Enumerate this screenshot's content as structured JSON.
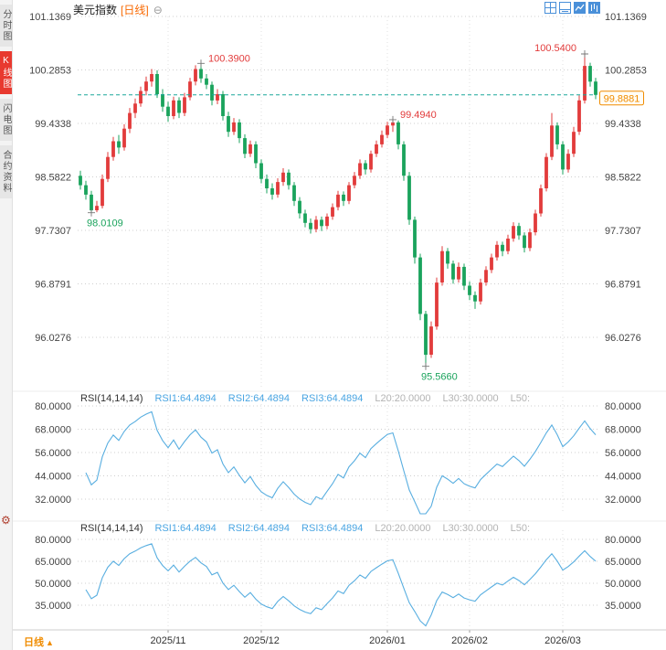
{
  "app": {
    "sidebar": {
      "tabs": [
        {
          "label": "分时图",
          "active": false
        },
        {
          "label": "K线图",
          "active": true
        },
        {
          "label": "闪电图",
          "active": false
        },
        {
          "label": "合约资料",
          "active": false
        }
      ],
      "settings_glyph": "⚙"
    },
    "header": {
      "title": "美元指数",
      "period_tag": "[日线]",
      "collapse_glyph": "⊖",
      "toolbar_icons": [
        "grid-layout-icon",
        "split-layout-icon",
        "line-chart-panel-icon",
        "candle-chart-panel-icon"
      ]
    },
    "footer": {
      "period_label": "日线",
      "period_arrow": "▲"
    }
  },
  "colors": {
    "up": "#e23b3b",
    "down": "#1aa35c",
    "rsi_line": "#58aee0",
    "price_line": "#1ba79b",
    "badge": "#f08c00",
    "grid": "#cfcfcf",
    "axis_text": "#444444",
    "gray_text": "#b3b3b3",
    "blue_text": "#4aa5e2",
    "tab_active_bg": "#e8392f"
  },
  "chart_data": {
    "type": "candlestick+rsi",
    "title": "美元指数 日线",
    "price_axis": [
      "101.1369",
      "100.2853",
      "99.4338",
      "98.5822",
      "97.7307",
      "96.8791",
      "96.0276"
    ],
    "price_axis_values": [
      101.1369,
      100.2853,
      99.4338,
      98.5822,
      97.7307,
      96.8791,
      96.0276
    ],
    "price_range_hint": [
      95.2,
      101.25
    ],
    "x_labels": [
      {
        "label": "2025/11",
        "idx": 16
      },
      {
        "label": "2025/12",
        "idx": 33
      },
      {
        "label": "2026/01",
        "idx": 56
      },
      {
        "label": "2026/02",
        "idx": 71
      },
      {
        "label": "2026/03",
        "idx": 88
      }
    ],
    "current_price": "99.8881",
    "annotations": [
      {
        "text": "98.0109",
        "idx": 2,
        "price": 98.0109,
        "type": "low",
        "color": "#1aa35c"
      },
      {
        "text": "100.3900",
        "idx": 22,
        "price": 100.39,
        "type": "high",
        "color": "#e23b3b"
      },
      {
        "text": "99.4940",
        "idx": 57,
        "price": 99.494,
        "type": "high",
        "color": "#e23b3b"
      },
      {
        "text": "95.5660",
        "idx": 63,
        "price": 95.566,
        "type": "low",
        "color": "#1aa35c"
      },
      {
        "text": "100.5400",
        "idx": 92,
        "price": 100.54,
        "type": "high",
        "color": "#e23b3b",
        "label_side": "left"
      }
    ],
    "candles": [
      [
        98.6,
        98.68,
        98.38,
        98.45
      ],
      [
        98.45,
        98.52,
        98.22,
        98.3
      ],
      [
        98.3,
        98.36,
        98.0109,
        98.05
      ],
      [
        98.05,
        98.2,
        98.02,
        98.12
      ],
      [
        98.12,
        98.62,
        98.08,
        98.55
      ],
      [
        98.55,
        98.98,
        98.5,
        98.9
      ],
      [
        98.9,
        99.22,
        98.84,
        99.15
      ],
      [
        99.15,
        99.25,
        98.95,
        99.05
      ],
      [
        99.05,
        99.42,
        99.0,
        99.35
      ],
      [
        99.35,
        99.68,
        99.28,
        99.6
      ],
      [
        99.6,
        99.83,
        99.52,
        99.75
      ],
      [
        99.75,
        100.02,
        99.7,
        99.95
      ],
      [
        99.95,
        100.18,
        99.88,
        100.1
      ],
      [
        100.1,
        100.3,
        100.02,
        100.22
      ],
      [
        100.22,
        100.28,
        99.84,
        99.9
      ],
      [
        99.9,
        99.98,
        99.62,
        99.7
      ],
      [
        99.7,
        99.78,
        99.46,
        99.55
      ],
      [
        99.55,
        99.86,
        99.5,
        99.8
      ],
      [
        99.8,
        99.85,
        99.52,
        99.6
      ],
      [
        99.6,
        99.92,
        99.55,
        99.85
      ],
      [
        99.85,
        100.16,
        99.8,
        100.1
      ],
      [
        100.1,
        100.36,
        100.04,
        100.3
      ],
      [
        100.3,
        100.39,
        100.08,
        100.15
      ],
      [
        100.15,
        100.22,
        99.98,
        100.05
      ],
      [
        100.05,
        100.1,
        99.72,
        99.8
      ],
      [
        99.8,
        99.98,
        99.74,
        99.9
      ],
      [
        99.9,
        99.95,
        99.48,
        99.55
      ],
      [
        99.55,
        99.62,
        99.22,
        99.3
      ],
      [
        99.3,
        99.52,
        99.25,
        99.45
      ],
      [
        99.45,
        99.5,
        99.12,
        99.2
      ],
      [
        99.2,
        99.26,
        98.88,
        98.95
      ],
      [
        98.95,
        99.16,
        98.9,
        99.1
      ],
      [
        99.1,
        99.15,
        98.72,
        98.8
      ],
      [
        98.8,
        98.86,
        98.48,
        98.55
      ],
      [
        98.55,
        98.62,
        98.32,
        98.4
      ],
      [
        98.4,
        98.48,
        98.22,
        98.3
      ],
      [
        98.3,
        98.56,
        98.25,
        98.5
      ],
      [
        98.5,
        98.72,
        98.44,
        98.65
      ],
      [
        98.65,
        98.7,
        98.38,
        98.45
      ],
      [
        98.45,
        98.5,
        98.12,
        98.2
      ],
      [
        98.2,
        98.26,
        97.92,
        98.0
      ],
      [
        98.0,
        98.06,
        97.78,
        97.85
      ],
      [
        97.85,
        97.92,
        97.68,
        97.75
      ],
      [
        97.75,
        97.96,
        97.7,
        97.9
      ],
      [
        97.9,
        97.95,
        97.72,
        97.8
      ],
      [
        97.8,
        98.0,
        97.75,
        97.95
      ],
      [
        97.95,
        98.16,
        97.9,
        98.1
      ],
      [
        98.1,
        98.36,
        98.05,
        98.3
      ],
      [
        98.3,
        98.35,
        98.12,
        98.2
      ],
      [
        98.2,
        98.5,
        98.15,
        98.45
      ],
      [
        98.45,
        98.66,
        98.4,
        98.6
      ],
      [
        98.6,
        98.86,
        98.55,
        98.8
      ],
      [
        98.8,
        98.85,
        98.62,
        98.7
      ],
      [
        98.7,
        99.0,
        98.65,
        98.95
      ],
      [
        98.95,
        99.16,
        98.9,
        99.1
      ],
      [
        99.1,
        99.32,
        99.05,
        99.25
      ],
      [
        99.25,
        99.46,
        99.2,
        99.4
      ],
      [
        99.4,
        99.494,
        99.3,
        99.45
      ],
      [
        99.45,
        99.48,
        99.02,
        99.1
      ],
      [
        99.1,
        99.15,
        98.52,
        98.6
      ],
      [
        98.6,
        98.66,
        97.82,
        97.9
      ],
      [
        97.9,
        97.95,
        97.2,
        97.3
      ],
      [
        97.3,
        97.36,
        96.3,
        96.4
      ],
      [
        96.4,
        96.45,
        95.566,
        95.75
      ],
      [
        95.75,
        96.28,
        95.7,
        96.2
      ],
      [
        96.2,
        96.98,
        96.15,
        96.9
      ],
      [
        96.9,
        97.48,
        96.85,
        97.4
      ],
      [
        97.4,
        97.45,
        97.12,
        97.2
      ],
      [
        97.2,
        97.25,
        96.88,
        96.95
      ],
      [
        96.95,
        97.22,
        96.9,
        97.15
      ],
      [
        97.15,
        97.2,
        96.78,
        96.85
      ],
      [
        96.85,
        96.92,
        96.62,
        96.7
      ],
      [
        96.7,
        96.76,
        96.48,
        96.6
      ],
      [
        96.6,
        96.96,
        96.55,
        96.9
      ],
      [
        96.9,
        97.16,
        96.85,
        97.1
      ],
      [
        97.1,
        97.36,
        97.05,
        97.3
      ],
      [
        97.3,
        97.56,
        97.25,
        97.5
      ],
      [
        97.5,
        97.55,
        97.32,
        97.4
      ],
      [
        97.4,
        97.66,
        97.35,
        97.6
      ],
      [
        97.6,
        97.86,
        97.55,
        97.8
      ],
      [
        97.8,
        97.85,
        97.58,
        97.65
      ],
      [
        97.65,
        97.7,
        97.38,
        97.45
      ],
      [
        97.45,
        97.76,
        97.4,
        97.7
      ],
      [
        97.7,
        98.06,
        97.65,
        98.0
      ],
      [
        98.0,
        98.46,
        97.95,
        98.4
      ],
      [
        98.4,
        98.96,
        98.35,
        98.9
      ],
      [
        98.9,
        99.6,
        98.85,
        99.4
      ],
      [
        99.4,
        99.45,
        99.02,
        99.1
      ],
      [
        99.1,
        99.15,
        98.62,
        98.7
      ],
      [
        98.7,
        99.02,
        98.65,
        98.95
      ],
      [
        98.95,
        99.38,
        98.9,
        99.3
      ],
      [
        99.3,
        99.88,
        99.25,
        99.8
      ],
      [
        99.8,
        100.54,
        99.75,
        100.35
      ],
      [
        100.35,
        100.4,
        100.02,
        100.1
      ],
      [
        100.1,
        100.16,
        99.82,
        99.8881
      ]
    ],
    "rsi_period": 14,
    "rsi_header": {
      "name": "RSI(14,14,14)",
      "rsi1": "RSI1:64.4894",
      "rsi2": "RSI2:64.4894",
      "rsi3": "RSI3:64.4894",
      "l20": "L20:20.0000",
      "l30": "L30:30.0000",
      "l50": "L50:"
    },
    "rsi_panels": [
      {
        "axis_values": [
          80,
          68,
          56,
          44,
          32
        ],
        "axis_labels": [
          "80.0000",
          "68.0000",
          "56.0000",
          "44.0000",
          "32.0000"
        ]
      },
      {
        "axis_values": [
          80,
          65,
          50,
          35
        ],
        "axis_labels": [
          "80.0000",
          "65.0000",
          "50.0000",
          "35.0000"
        ]
      }
    ]
  }
}
